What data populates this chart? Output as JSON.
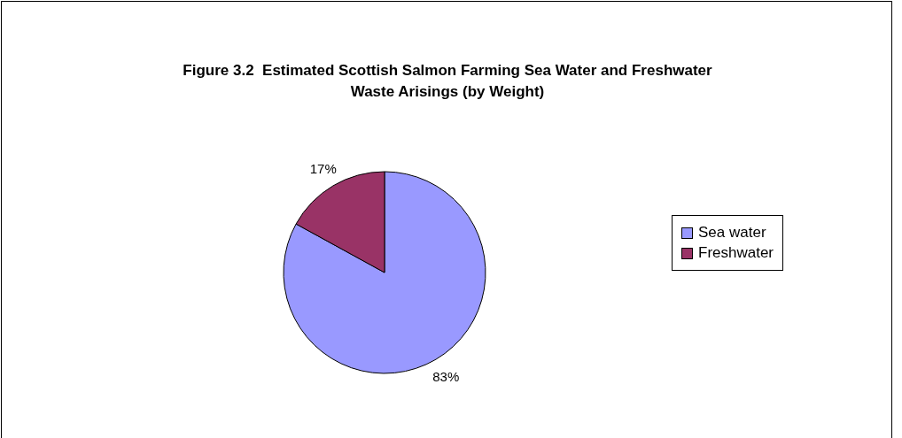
{
  "chart_data": {
    "type": "pie",
    "title": "Figure 3.2  Estimated Scottish Salmon Farming Sea Water and Freshwater Waste Arisings (by Weight)",
    "categories": [
      "Sea water",
      "Freshwater"
    ],
    "values": [
      83,
      17
    ],
    "value_labels": [
      "83%",
      "17%"
    ],
    "colors": [
      "#9999ff",
      "#993366"
    ],
    "legend": "right"
  }
}
